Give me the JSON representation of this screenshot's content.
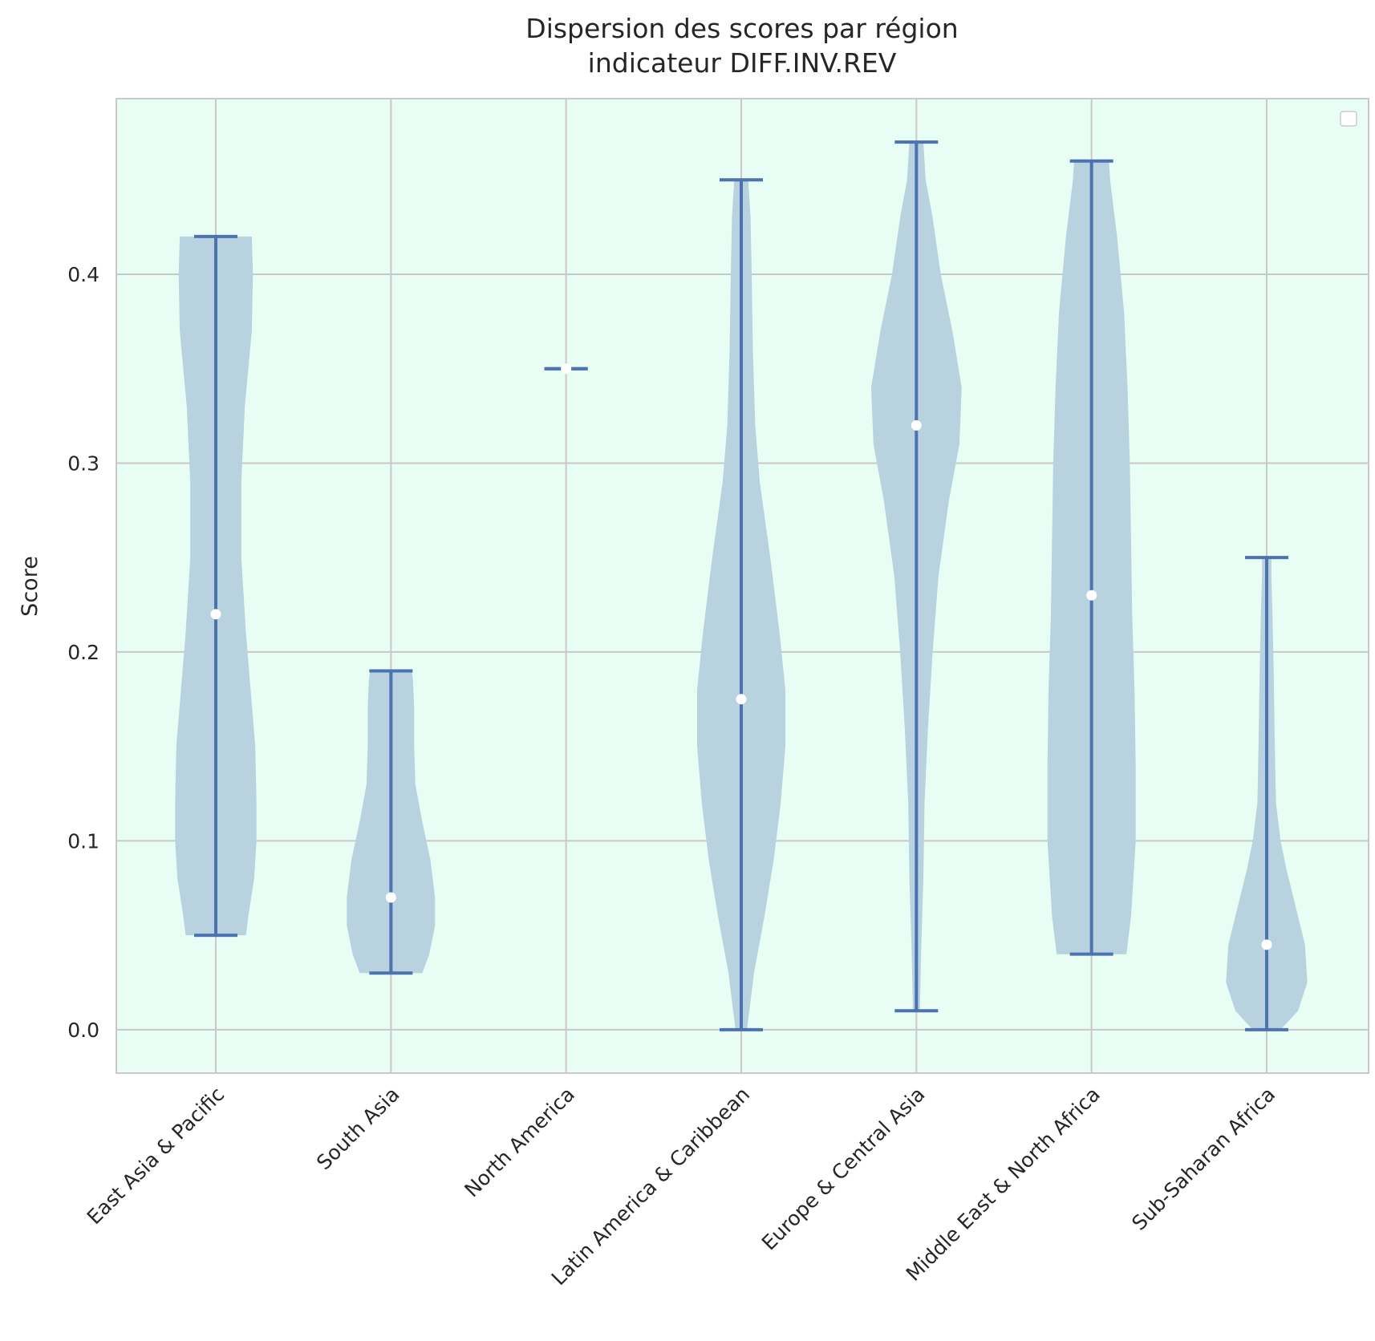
{
  "chart_data": {
    "type": "violin",
    "title_lines": [
      "Dispersion des scores par région",
      "indicateur DIFF.INV.REV"
    ],
    "ylabel": "Score",
    "xlabel": "",
    "ylim": [
      -0.023,
      0.493
    ],
    "yticks": [
      "0.0",
      "0.1",
      "0.2",
      "0.3",
      "0.4"
    ],
    "grid": true,
    "legend": "top-right, empty",
    "colors": {
      "plot_background": "#e8fdf3",
      "violin_fill": "#b8d2df",
      "line": "#4c72b0",
      "median_dot": "#ffffff",
      "grid": "#c8c8c8",
      "spine": "#c8c8c8"
    },
    "categories": [
      "East Asia & Pacific",
      "South Asia",
      "North America",
      "Latin America & Caribbean",
      "Europe & Central Asia",
      "Middle East & North Africa",
      "Sub-Saharan Africa"
    ],
    "series": [
      {
        "min": 0.05,
        "max": 0.42,
        "median": 0.22,
        "density": [
          [
            0.05,
            0.26
          ],
          [
            0.06,
            0.28
          ],
          [
            0.08,
            0.33
          ],
          [
            0.1,
            0.35
          ],
          [
            0.12,
            0.35
          ],
          [
            0.15,
            0.34
          ],
          [
            0.18,
            0.3
          ],
          [
            0.21,
            0.26
          ],
          [
            0.25,
            0.22
          ],
          [
            0.29,
            0.22
          ],
          [
            0.33,
            0.25
          ],
          [
            0.37,
            0.31
          ],
          [
            0.4,
            0.32
          ],
          [
            0.42,
            0.31
          ]
        ]
      },
      {
        "min": 0.03,
        "max": 0.19,
        "median": 0.07,
        "density": [
          [
            0.03,
            0.27
          ],
          [
            0.04,
            0.33
          ],
          [
            0.055,
            0.38
          ],
          [
            0.07,
            0.38
          ],
          [
            0.09,
            0.34
          ],
          [
            0.11,
            0.27
          ],
          [
            0.13,
            0.21
          ],
          [
            0.15,
            0.2
          ],
          [
            0.17,
            0.2
          ],
          [
            0.185,
            0.19
          ],
          [
            0.19,
            0.18
          ]
        ]
      },
      {
        "min": 0.35,
        "max": 0.35,
        "median": 0.35,
        "density": []
      },
      {
        "min": 0.0,
        "max": 0.45,
        "median": 0.175,
        "density": [
          [
            0.0,
            0.05
          ],
          [
            0.03,
            0.11
          ],
          [
            0.06,
            0.2
          ],
          [
            0.09,
            0.28
          ],
          [
            0.12,
            0.34
          ],
          [
            0.15,
            0.38
          ],
          [
            0.18,
            0.38
          ],
          [
            0.21,
            0.33
          ],
          [
            0.25,
            0.25
          ],
          [
            0.29,
            0.16
          ],
          [
            0.32,
            0.12
          ],
          [
            0.36,
            0.1
          ],
          [
            0.4,
            0.09
          ],
          [
            0.43,
            0.08
          ],
          [
            0.45,
            0.06
          ]
        ]
      },
      {
        "min": 0.01,
        "max": 0.47,
        "median": 0.32,
        "density": [
          [
            0.01,
            0.03
          ],
          [
            0.04,
            0.04
          ],
          [
            0.08,
            0.06
          ],
          [
            0.12,
            0.07
          ],
          [
            0.16,
            0.1
          ],
          [
            0.2,
            0.14
          ],
          [
            0.24,
            0.19
          ],
          [
            0.28,
            0.28
          ],
          [
            0.31,
            0.37
          ],
          [
            0.34,
            0.39
          ],
          [
            0.37,
            0.31
          ],
          [
            0.4,
            0.21
          ],
          [
            0.43,
            0.14
          ],
          [
            0.45,
            0.08
          ],
          [
            0.47,
            0.06
          ]
        ]
      },
      {
        "min": 0.04,
        "max": 0.46,
        "median": 0.23,
        "density": [
          [
            0.04,
            0.3
          ],
          [
            0.06,
            0.34
          ],
          [
            0.1,
            0.38
          ],
          [
            0.14,
            0.38
          ],
          [
            0.18,
            0.37
          ],
          [
            0.22,
            0.35
          ],
          [
            0.26,
            0.34
          ],
          [
            0.3,
            0.33
          ],
          [
            0.34,
            0.31
          ],
          [
            0.38,
            0.28
          ],
          [
            0.42,
            0.22
          ],
          [
            0.45,
            0.16
          ],
          [
            0.46,
            0.15
          ]
        ]
      },
      {
        "min": 0.0,
        "max": 0.25,
        "median": 0.045,
        "density": [
          [
            0.0,
            0.12
          ],
          [
            0.01,
            0.27
          ],
          [
            0.025,
            0.35
          ],
          [
            0.045,
            0.33
          ],
          [
            0.065,
            0.25
          ],
          [
            0.085,
            0.17
          ],
          [
            0.1,
            0.12
          ],
          [
            0.12,
            0.08
          ],
          [
            0.15,
            0.07
          ],
          [
            0.19,
            0.06
          ],
          [
            0.22,
            0.05
          ],
          [
            0.24,
            0.04
          ],
          [
            0.25,
            0.04
          ]
        ]
      }
    ]
  }
}
